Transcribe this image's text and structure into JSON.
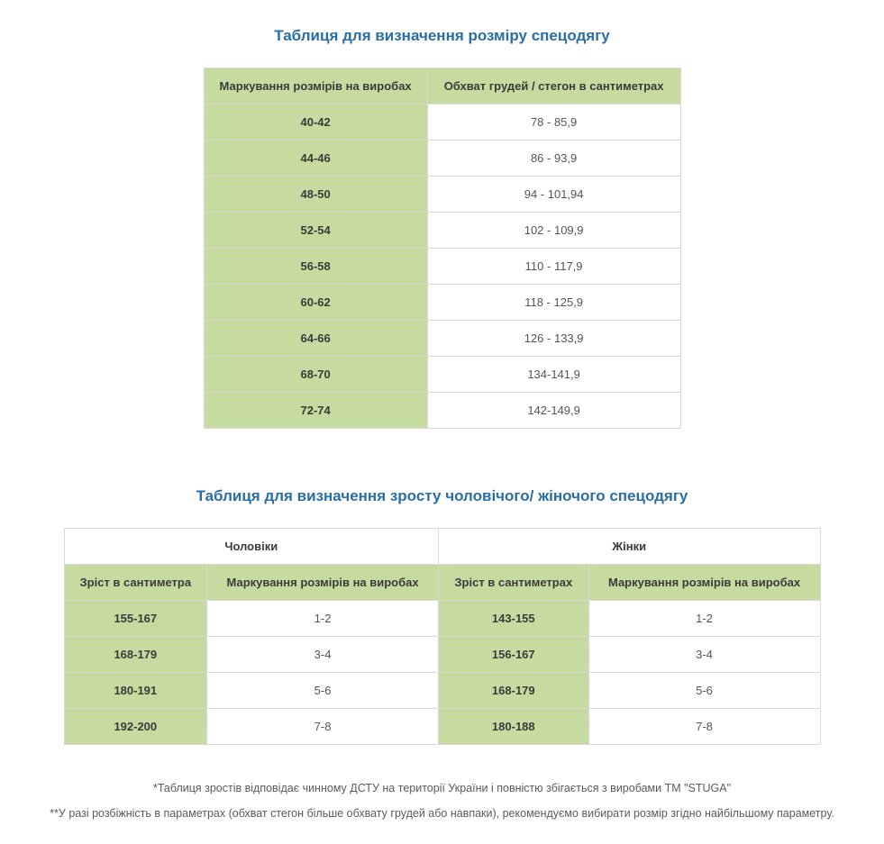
{
  "colors": {
    "title_color": "#2a6ea6",
    "header_bg": "#c6dba0",
    "border_color": "#d9d9d9",
    "body_text": "#4a4a4a",
    "cell_bg_white": "#ffffff"
  },
  "table1": {
    "title": "Таблиця для визначення розміру спецодягу",
    "columns": [
      "Маркування розмірів на виробах",
      "Обхват грудей / стегон в сантиметрах"
    ],
    "rows": [
      [
        "40-42",
        "78 - 85,9"
      ],
      [
        "44-46",
        "86 - 93,9"
      ],
      [
        "48-50",
        "94 - 101,94"
      ],
      [
        "52-54",
        "102 - 109,9"
      ],
      [
        "56-58",
        "110 - 117,9"
      ],
      [
        "60-62",
        "118 - 125,9"
      ],
      [
        "64-66",
        "126 - 133,9"
      ],
      [
        "68-70",
        "134-141,9"
      ],
      [
        "72-74",
        "142-149,9"
      ]
    ]
  },
  "table2": {
    "title": "Таблиця для визначення зросту чоловічого/ жіночого спецодягу",
    "group_headers": [
      "Чоловіки",
      "Жінки"
    ],
    "sub_headers": [
      "Зріст в сантиметра",
      "Маркування розмірів на виробах",
      "Зріст в сантиметрах",
      "Маркування розмірів на виробах"
    ],
    "rows": [
      [
        "155-167",
        "1-2",
        "143-155",
        "1-2"
      ],
      [
        "168-179",
        "3-4",
        "156-167",
        "3-4"
      ],
      [
        "180-191",
        "5-6",
        "168-179",
        "5-6"
      ],
      [
        "192-200",
        "7-8",
        "180-188",
        "7-8"
      ]
    ]
  },
  "footnotes": {
    "line1": "*Таблиця зростів відповідає чинному ДСТУ на території України і повністю збігається з виробами ТМ \"STUGA\"",
    "line2": "**У разі розбіжність в параметрах (обхват стегон більше обхвату грудей або навпаки), рекомендуємо вибирати розмір згідно найбільшому параметру."
  }
}
